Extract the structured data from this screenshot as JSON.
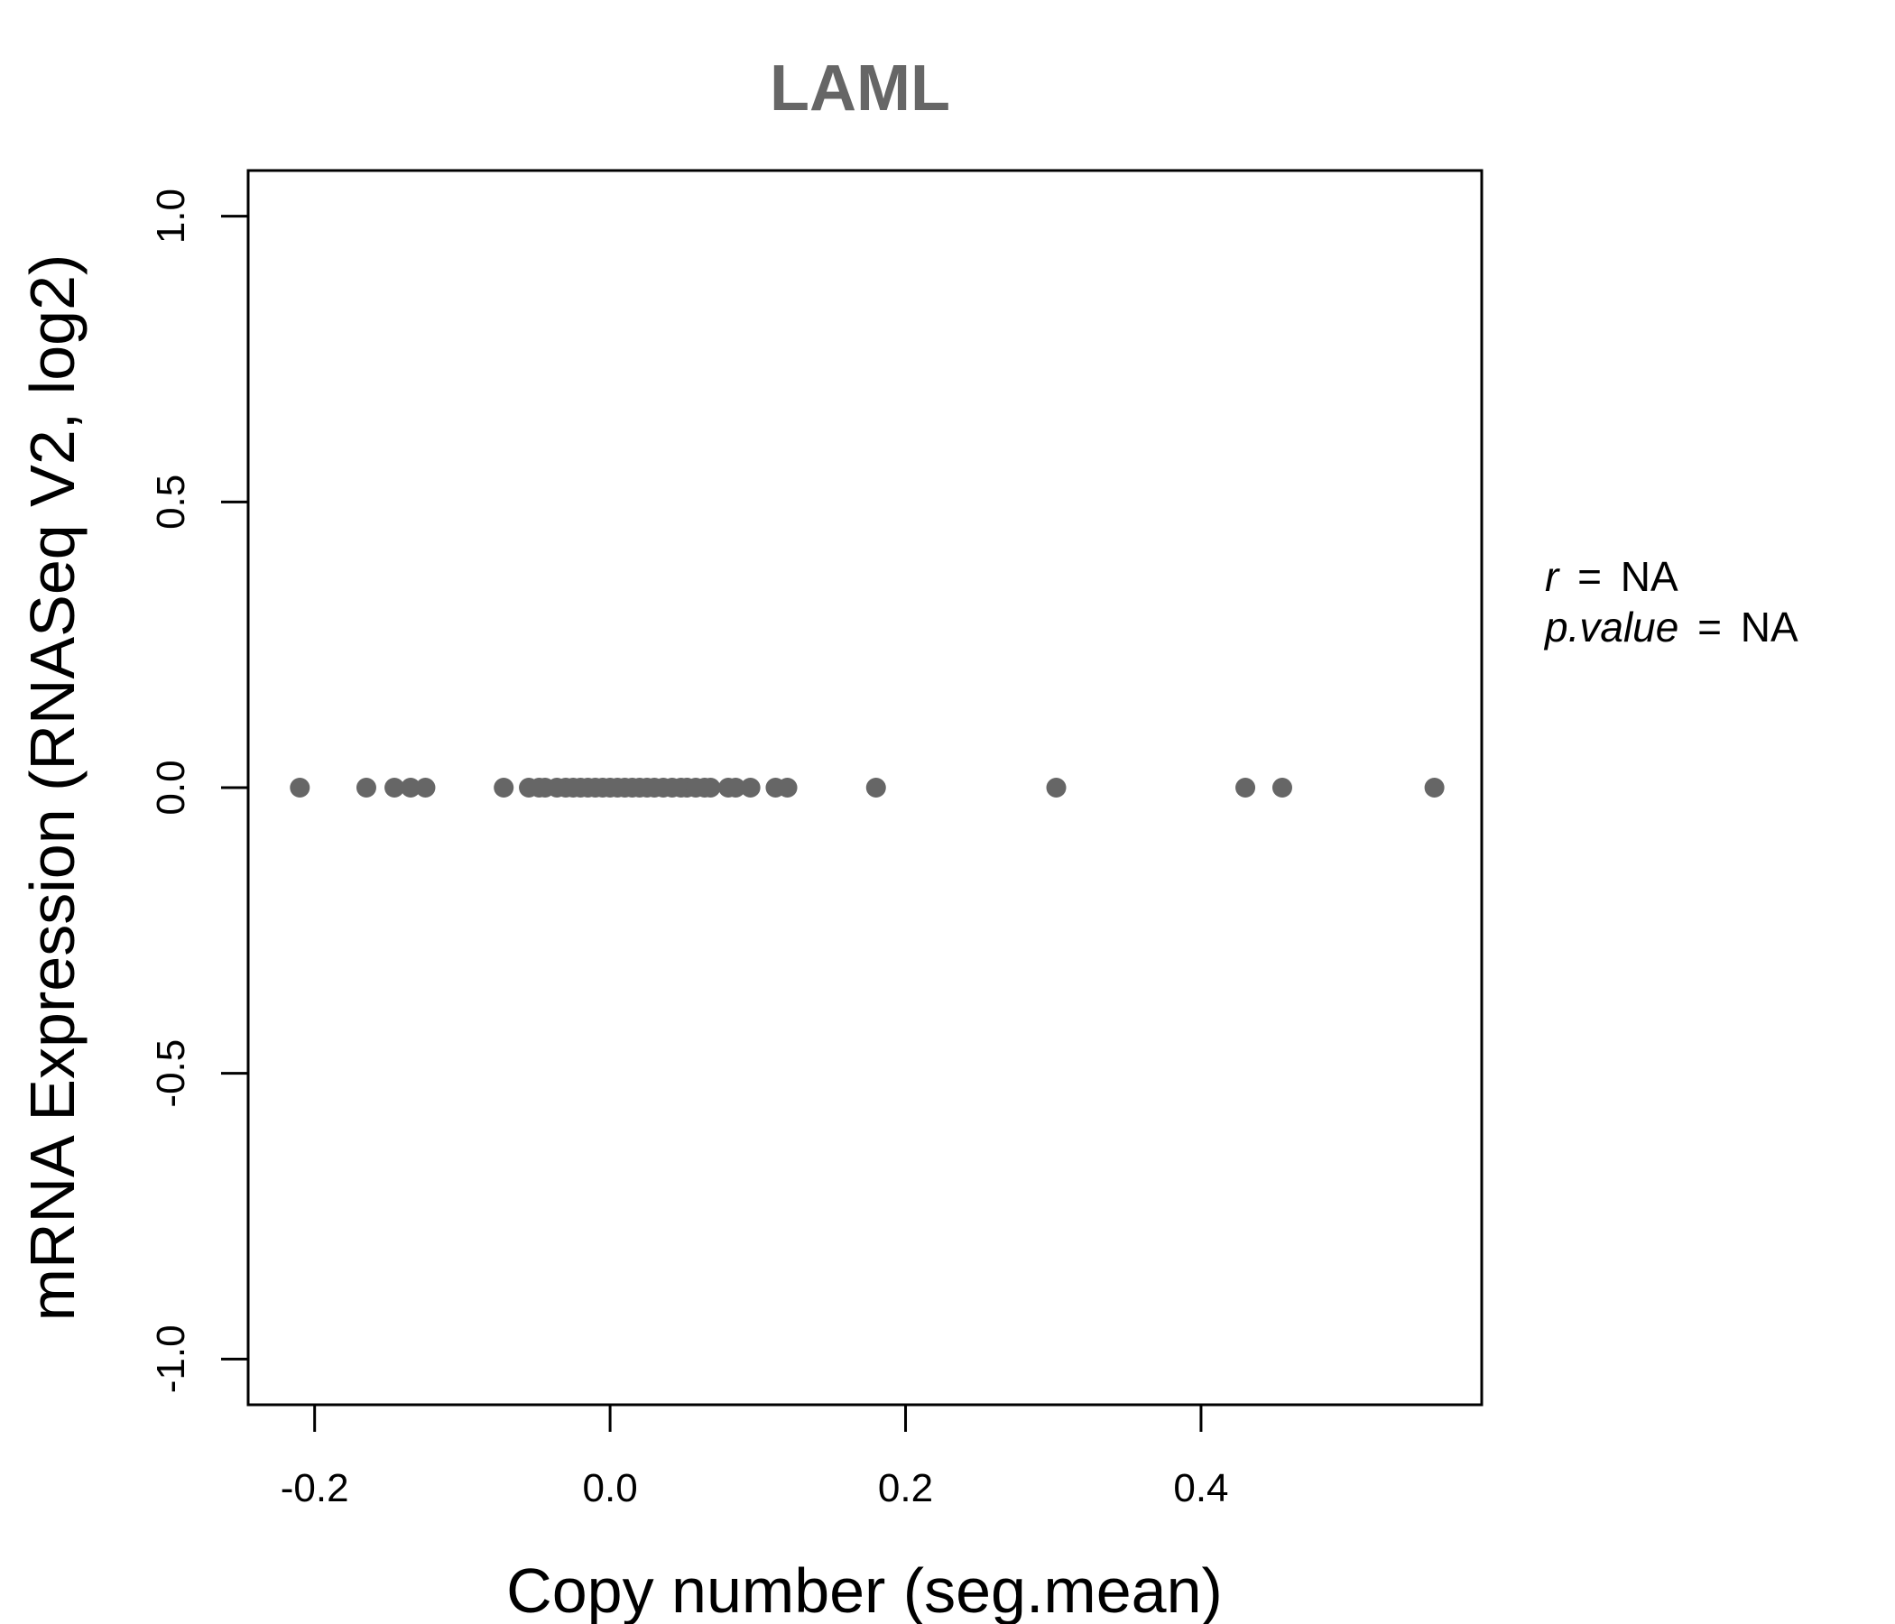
{
  "chart_data": {
    "type": "scatter",
    "title": "LAML",
    "xlabel": "Copy number (seg.mean)",
    "ylabel": "mRNA Expression (RNASeq V2, log2)",
    "xlim": [
      -0.245,
      0.59
    ],
    "ylim": [
      -1.08,
      1.08
    ],
    "x_ticks": [
      -0.2,
      0.0,
      0.2,
      0.4
    ],
    "x_tick_labels": [
      "-0.2",
      "0.0",
      "0.2",
      "0.4"
    ],
    "y_ticks": [
      -1.0,
      -0.5,
      0.0,
      0.5,
      1.0
    ],
    "y_tick_labels": [
      "-1.0",
      "-0.5",
      "0.0",
      "0.5",
      "1.0"
    ],
    "grid": false,
    "point_color": "#666666",
    "points": [
      {
        "x": -0.21,
        "y": 0
      },
      {
        "x": -0.165,
        "y": 0
      },
      {
        "x": -0.146,
        "y": 0
      },
      {
        "x": -0.135,
        "y": 0
      },
      {
        "x": -0.125,
        "y": 0
      },
      {
        "x": -0.072,
        "y": 0
      },
      {
        "x": -0.055,
        "y": 0
      },
      {
        "x": -0.048,
        "y": 0
      },
      {
        "x": -0.044,
        "y": 0
      },
      {
        "x": -0.036,
        "y": 0
      },
      {
        "x": -0.03,
        "y": 0
      },
      {
        "x": -0.025,
        "y": 0
      },
      {
        "x": -0.02,
        "y": 0
      },
      {
        "x": -0.015,
        "y": 0
      },
      {
        "x": -0.01,
        "y": 0
      },
      {
        "x": -0.005,
        "y": 0
      },
      {
        "x": 0.0,
        "y": 0
      },
      {
        "x": 0.005,
        "y": 0
      },
      {
        "x": 0.01,
        "y": 0
      },
      {
        "x": 0.015,
        "y": 0
      },
      {
        "x": 0.02,
        "y": 0
      },
      {
        "x": 0.025,
        "y": 0
      },
      {
        "x": 0.03,
        "y": 0
      },
      {
        "x": 0.036,
        "y": 0
      },
      {
        "x": 0.042,
        "y": 0
      },
      {
        "x": 0.048,
        "y": 0
      },
      {
        "x": 0.052,
        "y": 0
      },
      {
        "x": 0.058,
        "y": 0
      },
      {
        "x": 0.064,
        "y": 0
      },
      {
        "x": 0.068,
        "y": 0
      },
      {
        "x": 0.08,
        "y": 0
      },
      {
        "x": 0.085,
        "y": 0
      },
      {
        "x": 0.095,
        "y": 0
      },
      {
        "x": 0.112,
        "y": 0
      },
      {
        "x": 0.12,
        "y": 0
      },
      {
        "x": 0.18,
        "y": 0
      },
      {
        "x": 0.302,
        "y": 0
      },
      {
        "x": 0.43,
        "y": 0
      },
      {
        "x": 0.455,
        "y": 0
      },
      {
        "x": 0.558,
        "y": 0
      }
    ]
  },
  "stats": {
    "r_symbol": "r",
    "r_value": "NA",
    "p_symbol": "p.value",
    "p_value": "NA",
    "equals": "="
  }
}
